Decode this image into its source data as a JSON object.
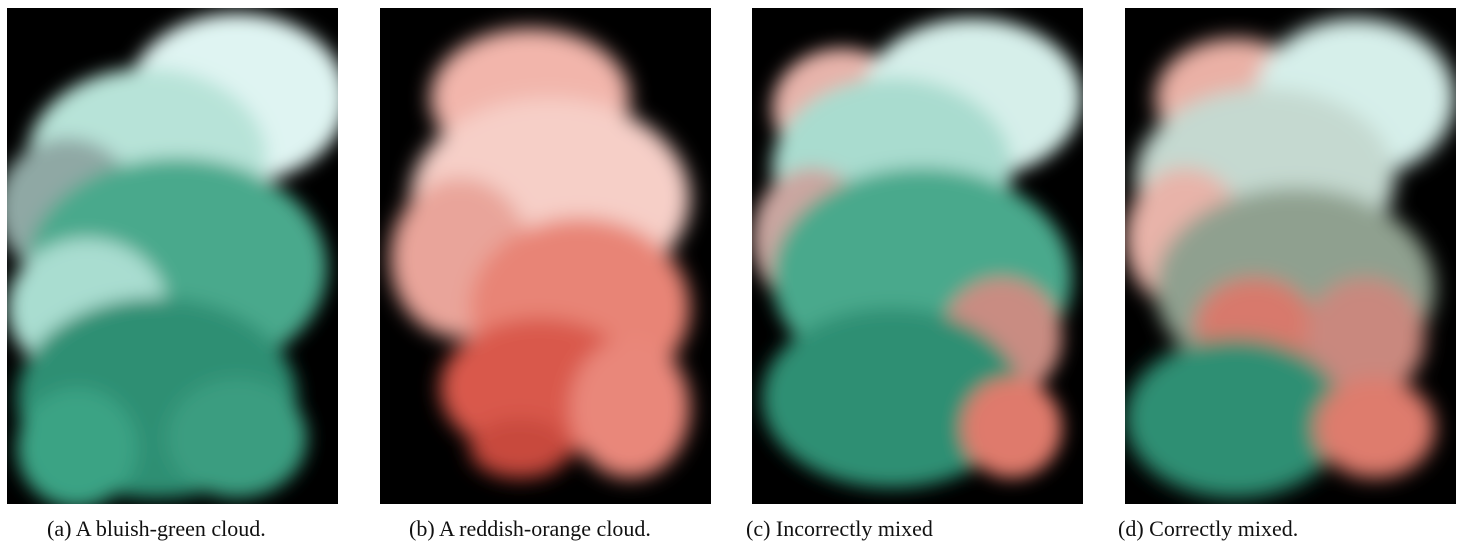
{
  "figure": {
    "panels": [
      {
        "id": "a",
        "caption": "(a) A bluish-green cloud.",
        "colors": [
          "#3ba98a",
          "#cfeeea"
        ]
      },
      {
        "id": "b",
        "caption": "(b) A reddish-orange cloud.",
        "colors": [
          "#e2574a",
          "#f7cdc5"
        ]
      },
      {
        "id": "c",
        "caption": "(c) Incorrectly mixed",
        "colors": [
          "#3ba98a",
          "#e2574a"
        ]
      },
      {
        "id": "d",
        "caption": "(d) Correctly mixed.",
        "colors": [
          "#3ba98a",
          "#e2574a"
        ]
      }
    ]
  }
}
